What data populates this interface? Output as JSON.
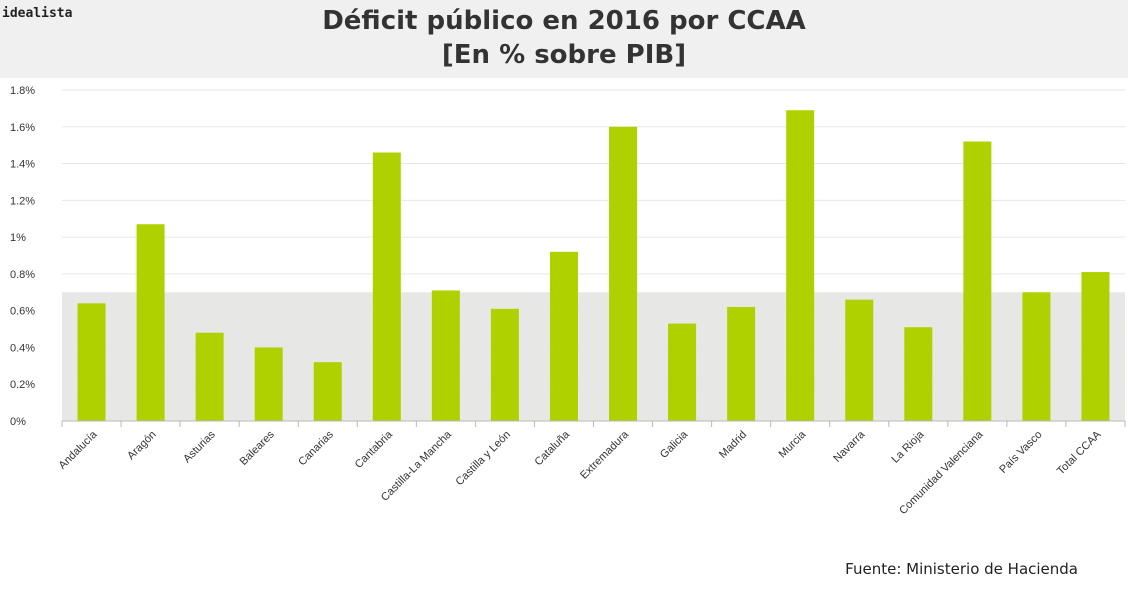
{
  "brand": "idealista",
  "title_line1": "Déficit público en 2016 por CCAA",
  "title_line2": "[En % sobre PIB]",
  "source": "Fuente: Ministerio de Hacienda",
  "colors": {
    "bar": "#b0d100",
    "band": "#e7e7e5",
    "grid": "#e6e6e6",
    "axis": "#b9b9b9",
    "text": "#333333"
  },
  "chart_data": {
    "type": "bar",
    "title": "Déficit público en 2016 por CCAA [En % sobre PIB]",
    "xlabel": "",
    "ylabel": "",
    "unit": "%",
    "ylim": [
      0,
      1.8
    ],
    "yticks": [
      0,
      0.2,
      0.4,
      0.6,
      0.8,
      1.0,
      1.2,
      1.4,
      1.6,
      1.8
    ],
    "ytick_labels": [
      "0%",
      "0.2%",
      "0.4%",
      "0.6%",
      "0.8%",
      "1%",
      "1.2%",
      "1.4%",
      "1.6%",
      "1.8%"
    ],
    "shaded_band": [
      0,
      0.7
    ],
    "grid": true,
    "legend": "none",
    "categories": [
      "Andalucía",
      "Aragón",
      "Asturias",
      "Baleares",
      "Canarias",
      "Cantabria",
      "Castilla-La Mancha",
      "Castilla y León",
      "Cataluña",
      "Extremadura",
      "Galicia",
      "Madrid",
      "Murcia",
      "Navarra",
      "La Rioja",
      "Comunidad Valenciana",
      "País Vasco",
      "Total CCAA"
    ],
    "values": [
      0.64,
      1.07,
      0.48,
      0.4,
      0.32,
      1.46,
      0.71,
      0.61,
      0.92,
      1.6,
      0.53,
      0.62,
      1.69,
      0.66,
      0.51,
      1.52,
      0.7,
      0.81
    ]
  }
}
